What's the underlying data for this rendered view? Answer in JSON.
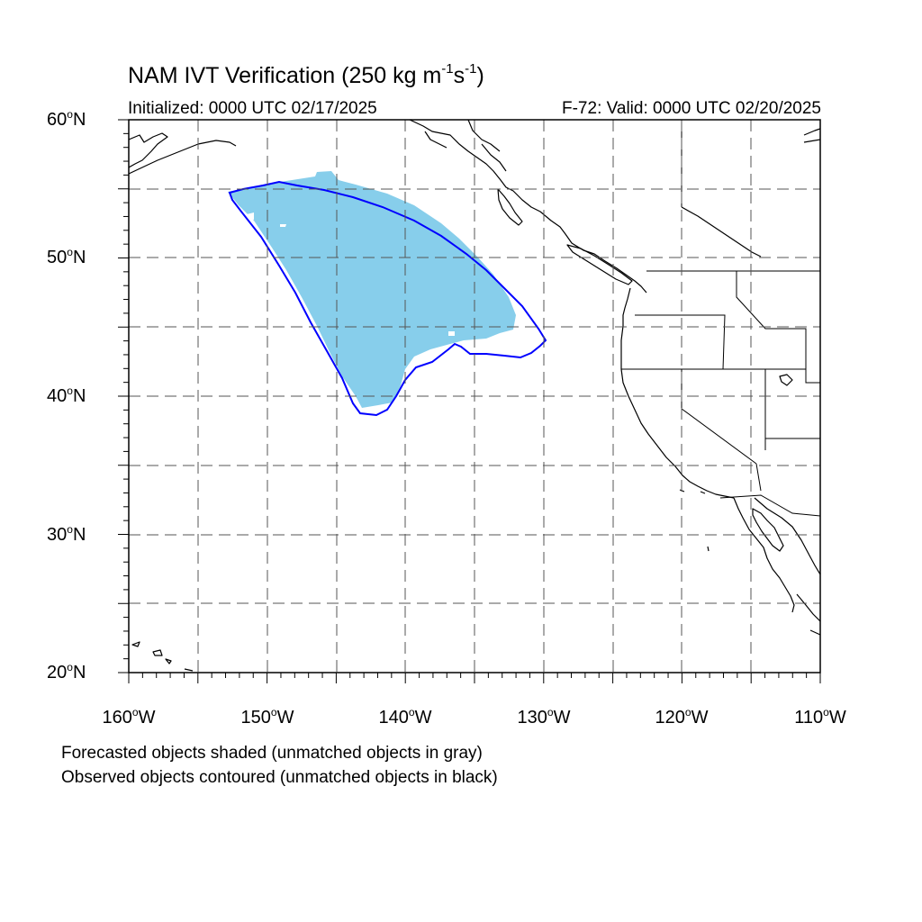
{
  "title": {
    "main": "NAM IVT Verification (250 kg m",
    "sup1": "-1",
    "mid": "s",
    "sup2": "-1",
    "end": ")"
  },
  "subtitle_left": "Initialized: 0000 UTC 02/17/2025",
  "subtitle_right": "F-72: Valid: 0000 UTC 02/20/2025",
  "lat_labels": [
    {
      "value": "60",
      "suffix": "N"
    },
    {
      "value": "50",
      "suffix": "N"
    },
    {
      "value": "40",
      "suffix": "N"
    },
    {
      "value": "30",
      "suffix": "N"
    },
    {
      "value": "20",
      "suffix": "N"
    }
  ],
  "lon_labels": [
    {
      "value": "160",
      "suffix": "W"
    },
    {
      "value": "150",
      "suffix": "W"
    },
    {
      "value": "140",
      "suffix": "W"
    },
    {
      "value": "130",
      "suffix": "W"
    },
    {
      "value": "120",
      "suffix": "W"
    },
    {
      "value": "110",
      "suffix": "W"
    }
  ],
  "notes": {
    "line1": "Forecasted objects shaded (unmatched objects in gray)",
    "line2": "Observed objects contoured (unmatched objects in black)"
  },
  "map_extent": {
    "lon": [
      -160,
      -110
    ],
    "lat": [
      20,
      60
    ]
  },
  "colors": {
    "forecast_fill": "#87ceeb",
    "observed_contour": "#0000ff",
    "coastline": "#000000",
    "grid": "#555555"
  }
}
